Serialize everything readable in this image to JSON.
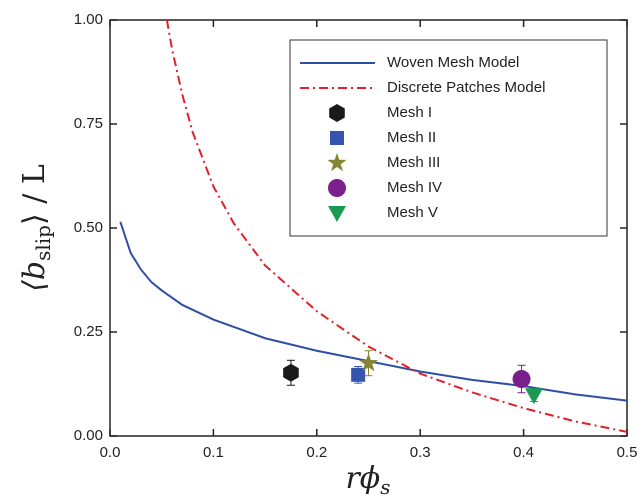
{
  "chart_data": {
    "type": "line",
    "x_label": {
      "text": "rϕ",
      "sub": "s"
    },
    "y_label": {
      "text": "⟨b",
      "sub": "slip",
      "after": "⟩ / L"
    },
    "xlim": [
      0,
      0.5
    ],
    "ylim": [
      0,
      1
    ],
    "xticks": [
      {
        "value": 0,
        "label": "0.0"
      },
      0.1,
      0.2,
      0.3,
      0.4,
      0.5
    ],
    "yticks": [
      {
        "value": 0,
        "label": "0.00"
      },
      0.25,
      {
        "value": 0.5,
        "label": "0.50"
      },
      0.75,
      {
        "value": 1,
        "label": "1.00"
      }
    ],
    "legend": "top-right",
    "series": [
      {
        "name": "Woven Mesh Model",
        "type": "line",
        "color": "#2f4fa6",
        "dash": "solid",
        "x": [
          0.01,
          0.02,
          0.03,
          0.04,
          0.05,
          0.07,
          0.1,
          0.15,
          0.2,
          0.25,
          0.3,
          0.35,
          0.4,
          0.45,
          0.5
        ],
        "y": [
          0.515,
          0.44,
          0.4,
          0.37,
          0.35,
          0.315,
          0.28,
          0.235,
          0.205,
          0.18,
          0.155,
          0.135,
          0.12,
          0.1,
          0.085
        ]
      },
      {
        "name": "Discrete Patches Model",
        "type": "line",
        "color": "#e0202a",
        "dash": "dashdot",
        "x": [
          0.055,
          0.06,
          0.07,
          0.08,
          0.1,
          0.12,
          0.15,
          0.2,
          0.25,
          0.3,
          0.35,
          0.4,
          0.45,
          0.5
        ],
        "y": [
          1.0,
          0.93,
          0.82,
          0.73,
          0.6,
          0.51,
          0.41,
          0.3,
          0.215,
          0.15,
          0.105,
          0.067,
          0.035,
          0.01
        ]
      },
      {
        "name": "Mesh I",
        "type": "scatter",
        "marker": "hexagon",
        "color": "#1a1a1a",
        "x": [
          0.175
        ],
        "y": [
          0.152
        ],
        "yerr": [
          0.03
        ]
      },
      {
        "name": "Mesh II",
        "type": "scatter",
        "marker": "square",
        "color": "#3355b0",
        "x": [
          0.24
        ],
        "y": [
          0.147
        ],
        "yerr": [
          0.02
        ]
      },
      {
        "name": "Mesh III",
        "type": "scatter",
        "marker": "star",
        "color": "#858535",
        "x": [
          0.25
        ],
        "y": [
          0.175
        ],
        "yerr": [
          0.03
        ]
      },
      {
        "name": "Mesh IV",
        "type": "scatter",
        "marker": "circle",
        "color": "#7b1f8c",
        "x": [
          0.398
        ],
        "y": [
          0.137
        ],
        "yerr": [
          0.033
        ]
      },
      {
        "name": "Mesh V",
        "type": "scatter",
        "marker": "triangle-down",
        "color": "#1a9a50",
        "x": [
          0.41
        ],
        "y": [
          0.098
        ],
        "yerr": [
          0.015
        ]
      }
    ]
  }
}
